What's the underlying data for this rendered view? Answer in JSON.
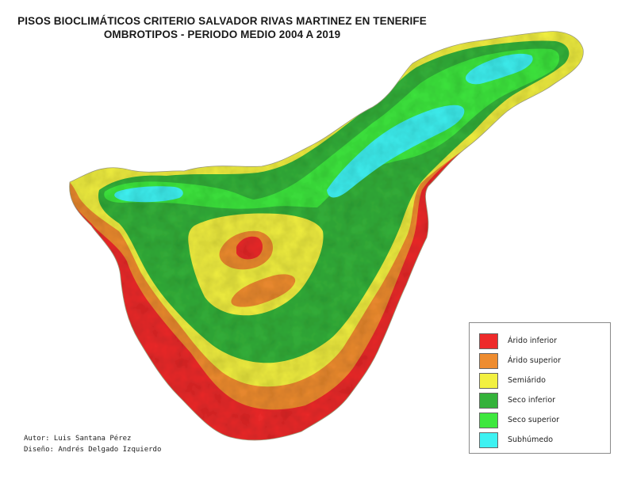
{
  "title": {
    "line1": "PISOS BIOCLIMÁTICOS CRITERIO SALVADOR RIVAS MARTINEZ EN TENERIFE",
    "line2": "OMBROTIPOS - PERIODO MEDIO 2004 A 2019"
  },
  "legend": {
    "items": [
      {
        "label": "Árido inferior",
        "color": "#ee2a2a"
      },
      {
        "label": "Árido superior",
        "color": "#ee8c2f"
      },
      {
        "label": "Semiárido",
        "color": "#f2f040"
      },
      {
        "label": "Seco inferior",
        "color": "#34b23a"
      },
      {
        "label": "Seco superior",
        "color": "#3ee83e"
      },
      {
        "label": "Subhúmedo",
        "color": "#3ef2f2"
      }
    ]
  },
  "credits": {
    "author": "Autor: Luis Santana Pérez",
    "design": "Diseño: Andrés Delgado Izquierdo"
  },
  "map": {
    "zone_colors": {
      "arido_inferior": "#ee2a2a",
      "arido_superior": "#ee8c2f",
      "semiarido": "#f2f040",
      "seco_inferior": "#34b23a",
      "seco_superior": "#3ee83e",
      "subhumedo": "#3ef2f2"
    }
  }
}
